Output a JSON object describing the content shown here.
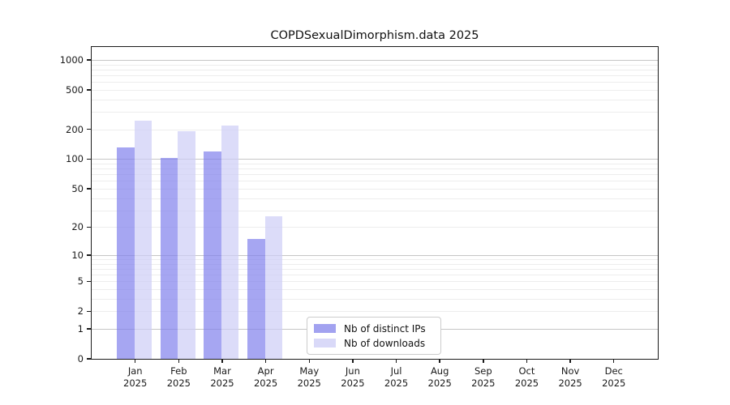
{
  "title": "COPDSexualDimorphism.data 2025",
  "chart_data": {
    "type": "bar",
    "title": "COPDSexualDimorphism.data 2025",
    "categories": [
      "Jan 2025",
      "Feb 2025",
      "Mar 2025",
      "Apr 2025",
      "May 2025",
      "Jun 2025",
      "Jul 2025",
      "Aug 2025",
      "Sep 2025",
      "Oct 2025",
      "Nov 2025",
      "Dec 2025"
    ],
    "series": [
      {
        "name": "Nb of distinct IPs",
        "color": "#a2a2f0",
        "fill": "rgba(128,128,237,0.7)",
        "values": [
          132,
          103,
          119,
          15,
          null,
          null,
          null,
          null,
          null,
          null,
          null,
          null
        ]
      },
      {
        "name": "Nb of downloads",
        "color": "#d9d9f8",
        "fill": "rgba(205,205,246,0.7)",
        "values": [
          244,
          192,
          218,
          26,
          null,
          null,
          null,
          null,
          null,
          null,
          null,
          null
        ]
      }
    ],
    "xlabel": "",
    "ylabel": "",
    "yscale": "log1p",
    "yticks": [
      0,
      1,
      2,
      5,
      10,
      20,
      50,
      100,
      200,
      500,
      1000
    ],
    "ylim": [
      0,
      1276
    ],
    "grid": "on",
    "legend_position": "lower center"
  },
  "axis_colors": {
    "major_grid": "#c6c6c6",
    "minor_grid": "#ededed",
    "spine": "#1a1a1a",
    "text": "#1a1a1a"
  }
}
